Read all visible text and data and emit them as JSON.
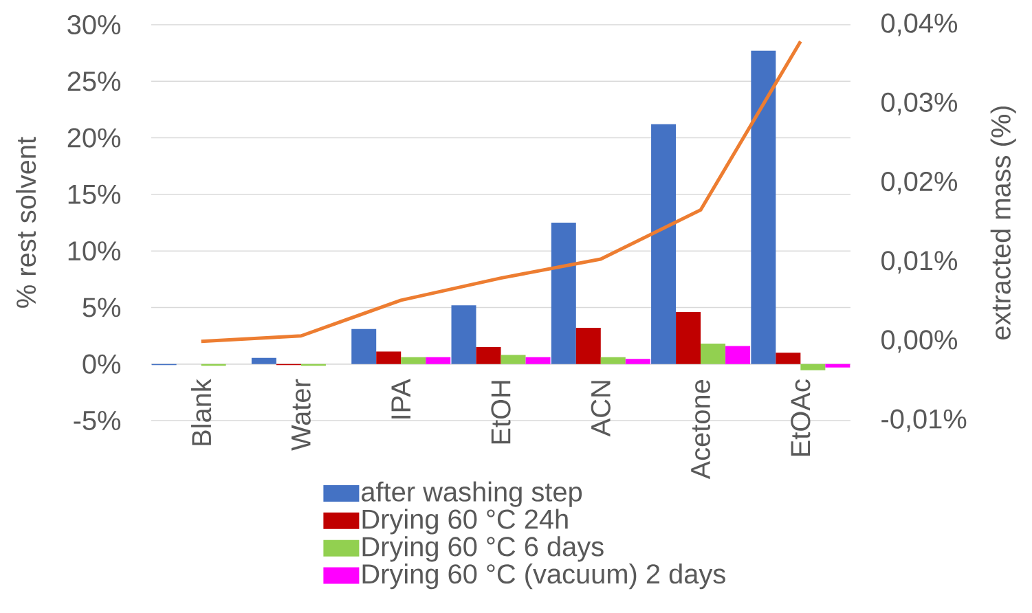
{
  "chart_data": {
    "type": "bar",
    "ylabel": "% rest solvent",
    "y2label": "extracted mass (%)",
    "categories": [
      "Blank",
      "Water",
      "IPA",
      "EtOH",
      "ACN",
      "Acetone",
      "EtOAc"
    ],
    "series": [
      {
        "name": "after washing step",
        "color": "#4472c4",
        "values": [
          -0.1,
          0.55,
          3.1,
          5.2,
          12.5,
          21.2,
          27.7
        ]
      },
      {
        "name": "Drying 60 °C 24h",
        "color": "#c00000",
        "values": [
          0,
          -0.1,
          1.1,
          1.5,
          3.2,
          4.6,
          1.0
        ]
      },
      {
        "name": "Drying 60 °C 6 days",
        "color": "#92d050",
        "values": [
          -0.15,
          -0.15,
          0.6,
          0.8,
          0.6,
          1.8,
          -0.55
        ]
      },
      {
        "name": "Drying 60 °C (vacuum) 2 days",
        "color": "#ff00ff",
        "values": [
          0,
          0,
          0.6,
          0.6,
          0.45,
          1.6,
          -0.3
        ]
      },
      {
        "type": "line",
        "axis": "y2",
        "color": "#ed7d31",
        "marker": "none",
        "values": [
          0.0,
          0.0007,
          0.0052,
          0.008,
          0.0104,
          0.0166,
          0.0379
        ]
      }
    ],
    "ylim": [
      -5,
      30
    ],
    "yticks": [
      {
        "value": -5,
        "label": "-5%"
      },
      {
        "value": 0,
        "label": "0%"
      },
      {
        "value": 5,
        "label": "5%"
      },
      {
        "value": 10,
        "label": "10%"
      },
      {
        "value": 15,
        "label": "15%"
      },
      {
        "value": 20,
        "label": "20%"
      },
      {
        "value": 25,
        "label": "25%"
      },
      {
        "value": 30,
        "label": "30%"
      }
    ],
    "y2lim": [
      -0.01,
      0.04
    ],
    "y2ticks": [
      {
        "value": -0.01,
        "label": "-0,01%"
      },
      {
        "value": 0,
        "label": "0,00%"
      },
      {
        "value": 0.01,
        "label": "0,01%"
      },
      {
        "value": 0.02,
        "label": "0,02%"
      },
      {
        "value": 0.03,
        "label": "0,03%"
      },
      {
        "value": 0.04,
        "label": "0,04%"
      }
    ],
    "grid": "y",
    "legend": "bottom"
  }
}
